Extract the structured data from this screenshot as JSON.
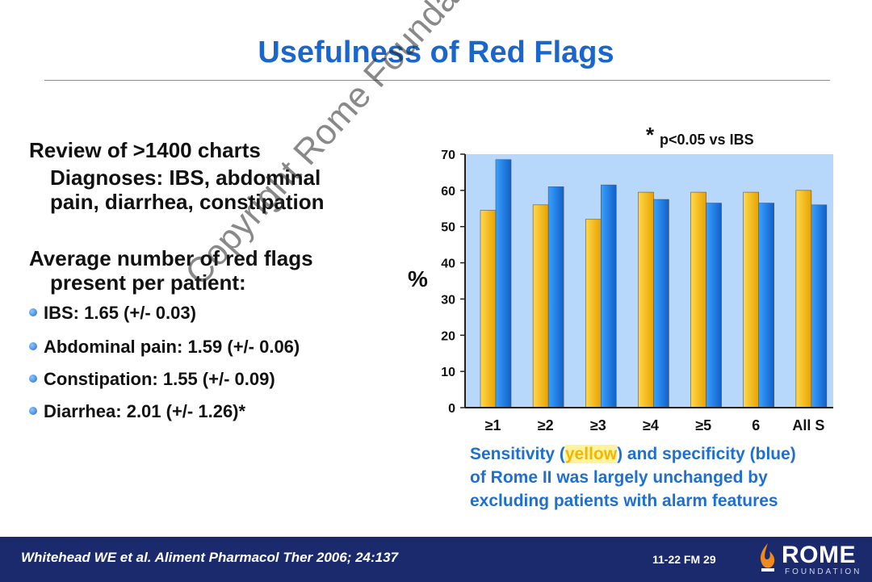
{
  "slide": {
    "title": "Usefulness of Red Flags",
    "watermark": "Copyright Rome Foundation"
  },
  "left": {
    "heading1": "Review of >1400 charts",
    "diagnoses_line1": "Diagnoses: IBS, abdominal",
    "diagnoses_line2": "pain, diarrhea, constipation",
    "heading2_line1": "Average number of red flags",
    "heading2_line2": "present per patient:",
    "bullets": [
      "IBS: 1.65 (+/- 0.03)",
      "Abdominal pain: 1.59 (+/- 0.06)",
      "Constipation: 1.55 (+/- 0.09)",
      "Diarrhea: 2.01 (+/- 1.26)*"
    ]
  },
  "chart_data": {
    "type": "bar",
    "categories": [
      "≥1",
      "≥2",
      "≥3",
      "≥4",
      "≥5",
      "6",
      "All S"
    ],
    "series": [
      {
        "values": [
          54.5,
          56,
          52,
          59.5,
          59.5,
          59.5,
          60
        ],
        "color": "#f5b800"
      },
      {
        "values": [
          68.5,
          61,
          61.5,
          57.5,
          56.5,
          56.5,
          56
        ],
        "color": "#1e7ee6"
      }
    ],
    "ylabel": "%",
    "ylim": [
      0,
      70
    ],
    "yticks": [
      0,
      10,
      20,
      30,
      40,
      50,
      60,
      70
    ],
    "annotation_star": "*",
    "annotation": "p<0.05 vs IBS",
    "grid": false,
    "plot_background": "#b8d8fb"
  },
  "caption": {
    "part1": "Sensitivity (",
    "yellow_word": "yellow",
    "part2": ") and specificity (blue)",
    "line2": "of Rome II was largely unchanged by",
    "line3": "excluding patients with alarm features"
  },
  "footer": {
    "reference": "Whitehead WE et al. Aliment Pharmacol Ther 2006; 24:137",
    "code": "11-22  FM  29",
    "logo_text": "ROME",
    "logo_sub": "FOUNDATION"
  },
  "colors": {
    "title_blue": "#1a66cc",
    "footer_navy": "#1a2a6c",
    "caption_blue": "#1f6fd1"
  }
}
